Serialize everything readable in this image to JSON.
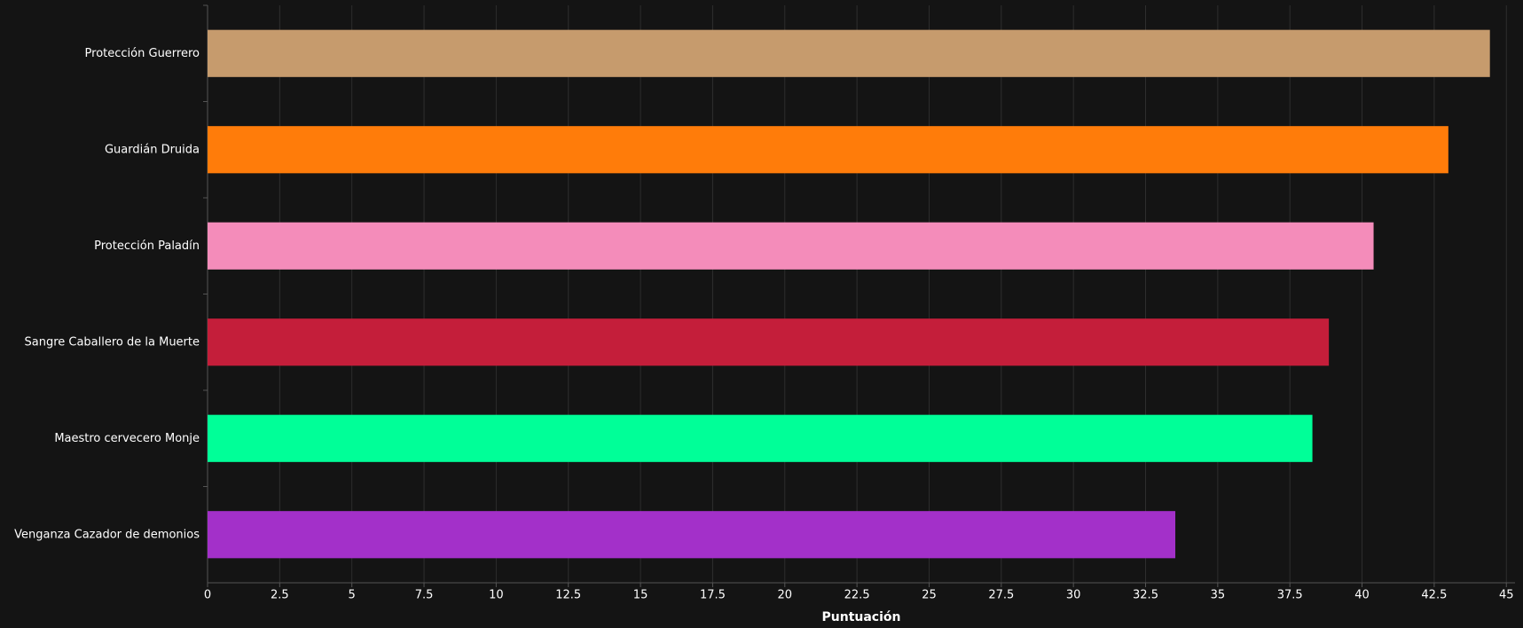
{
  "chart_data": {
    "type": "bar",
    "orientation": "horizontal",
    "x_label": "Puntuación",
    "categories": [
      "Protección Guerrero",
      "Guardián Druida",
      "Protección Paladín",
      "Sangre Caballero de la Muerte",
      "Maestro cervecero Monje",
      "Venganza Cazador de demonios"
    ],
    "values": [
      44.43,
      42.99,
      40.4,
      38.85,
      38.28,
      33.53
    ],
    "colors": [
      "#C69B6D",
      "#FF7C0A",
      "#F48CBA",
      "#C41E3A",
      "#00FF98",
      "#A330C9"
    ],
    "xlim": [
      0,
      45.3
    ],
    "xticks": [
      0,
      2.5,
      5,
      7.5,
      10,
      12.5,
      15,
      17.5,
      20,
      22.5,
      25,
      27.5,
      30,
      32.5,
      35,
      37.5,
      40,
      42.5,
      45
    ],
    "grid": true
  }
}
